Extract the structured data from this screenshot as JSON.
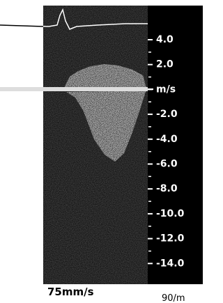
{
  "scale": {
    "labels": [
      "4.0",
      "2.0",
      "m/s",
      "-2.0",
      "-4.0",
      "-6.0",
      "-8.0",
      "-10.0",
      "-12.0",
      "-14.0"
    ]
  },
  "sweep_speed": "75mm/s",
  "corner_label": "90/m"
}
